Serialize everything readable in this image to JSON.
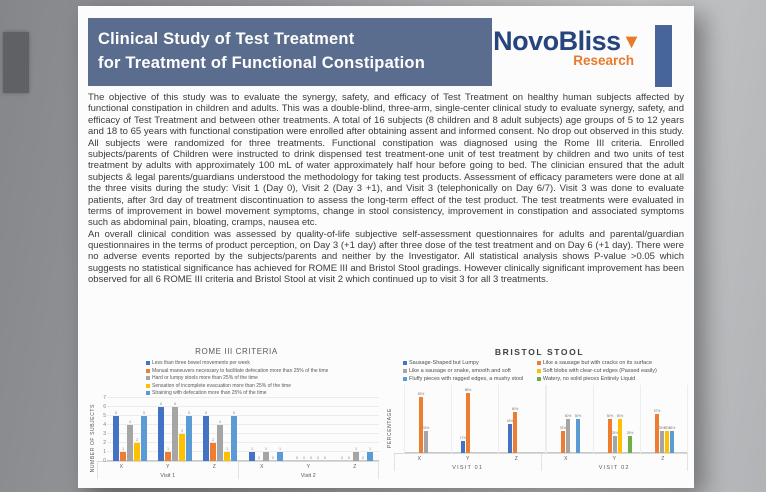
{
  "header": {
    "title_line1": "Clinical Study of Test Treatment",
    "title_line2": "for Treatment of Functional Constipation",
    "bar_color": "#5b6d8e",
    "text_color": "#ffffff"
  },
  "logo": {
    "name": "NovoBliss",
    "triangle_icon": "down-triangle",
    "triangle_glyph": "▼",
    "subtitle": "Research",
    "name_color": "#27457d",
    "accent_color": "#e87a2c",
    "side_bar_color": "#47659a"
  },
  "body": {
    "paragraph1": "The objective of this study was to evaluate the synergy, safety, and efficacy of Test Treatment on healthy human subjects affected by functional constipation in children and adults. This was a double-blind, three-arm, single-center clinical study to evaluate synergy, safety, and efficacy of Test Treatment and between other treatments. A total of 16 subjects (8 children and 8 adult subjects) age groups of 5 to 12 years and 18 to 65 years with functional constipation were enrolled after obtaining assent and informed consent. No drop out observed in this study. All subjects were randomized for three treatments. Functional constipation was diagnosed using the Rome III criteria. Enrolled subjects/parents of Children were instructed to drink dispensed test treatment-one unit of test treatment by children and two units of test treatment by adults with approximately 100 mL of water approximately half hour before going to bed. The clinician ensured that the adult subjects & legal parents/guardians understood the methodology for taking test products. Assessment of efficacy parameters were done at all the three visits during the study: Visit 1 (Day 0), Visit 2 (Day 3 +1), and Visit 3 (telephonically on Day 6/7). Visit 3 was done to evaluate patients, after 3rd day of treatment discontinuation to assess the long-term effect of the test product. The test treatments were evaluated in terms of improvement in bowel movement symptoms, change in stool consistency, improvement in constipation and associated symptoms such as abdominal pain, bloating, cramps, nausea etc.",
    "paragraph2": "An overall clinical condition was assessed by quality-of-life subjective self-assessment questionnaires for adults and parental/guardian questionnaires in the terms of product perception, on Day 3 (+1 day) after three dose of the test treatment and on Day 6 (+1 day). There were no adverse events reported by the subjects/parents and neither by the Investigator. All statistical analysis shows P-value >0.05 which suggests no statistical significance has achieved for ROME III and Bristol Stool gradings. However clinically significant improvement has been observed for all 6 ROME III criteria and Bristol Stool at visit 2 which continued up to visit 3 for all 3 treatments."
  },
  "chart_data": [
    {
      "type": "bar",
      "title": "ROME III CRITERIA",
      "ylabel": "NUMBER OF SUBJECTS",
      "xlabel": "",
      "ylim": [
        0,
        7
      ],
      "yticks": [
        0,
        1,
        2,
        3,
        4,
        5,
        6,
        7
      ],
      "grid": true,
      "legend_position": "top-left",
      "value_suffix": "",
      "show_zero_labels": true,
      "groups": [
        {
          "label": "Visit 1",
          "categories": [
            "X",
            "Y",
            "Z"
          ]
        },
        {
          "label": "Visit 2",
          "categories": [
            "X",
            "Y",
            "Z"
          ]
        }
      ],
      "series": [
        {
          "name": "Less than three bowel movements per week",
          "color": "#4472C4",
          "values": [
            5,
            6,
            5,
            1,
            0,
            0
          ]
        },
        {
          "name": "Manual maneuvers necessary to facilitate defecation more than 25% of the time",
          "color": "#ED7D31",
          "values": [
            1,
            1,
            2,
            0,
            0,
            0
          ]
        },
        {
          "name": "Hard or lumpy stools more than 25% of the time",
          "color": "#A5A5A5",
          "values": [
            4,
            6,
            4,
            1,
            0,
            1
          ]
        },
        {
          "name": "Sensation of incomplete evacuation more than 25% of the time",
          "color": "#FFC000",
          "values": [
            2,
            3,
            1,
            0,
            0,
            0
          ]
        },
        {
          "name": "Straining with defecation more than 25% of the time",
          "color": "#5B9BD5",
          "values": [
            5,
            5,
            5,
            1,
            0,
            1
          ]
        }
      ]
    },
    {
      "type": "bar",
      "title": "BRISTOL STOOL",
      "ylabel": "PERCENTAGE",
      "xlabel": "",
      "ylim": [
        0,
        100
      ],
      "grid": false,
      "legend_position": "top",
      "value_suffix": "%",
      "show_zero_labels": false,
      "groups": [
        {
          "label": "VISIT 01",
          "categories": [
            "X",
            "Y",
            "Z"
          ]
        },
        {
          "label": "VISIT 02",
          "categories": [
            "X",
            "Y",
            "Z"
          ]
        }
      ],
      "series": [
        {
          "name": "Sausage-Shaped but Lumpy",
          "color": "#4472C4",
          "values": [
            0,
            17,
            43,
            0,
            0,
            0
          ]
        },
        {
          "name": "Like a sausage but with cracks on its surface",
          "color": "#ED7D31",
          "values": [
            83,
            88,
            60,
            33,
            50,
            57
          ]
        },
        {
          "name": "Like a sausage or snake, smooth and soft",
          "color": "#A5A5A5",
          "values": [
            33,
            0,
            0,
            50,
            25,
            33
          ]
        },
        {
          "name": "Soft blobs with clear-cut edges (Passed easily)",
          "color": "#FFC000",
          "values": [
            0,
            0,
            0,
            0,
            50,
            33
          ]
        },
        {
          "name": "Fluffy pieces with ragged edges, a mushy stool",
          "color": "#5B9BD5",
          "values": [
            0,
            0,
            0,
            50,
            0,
            33
          ]
        },
        {
          "name": "Watery, no solid pieces Entirely Liquid",
          "color": "#70AD47",
          "values": [
            0,
            0,
            0,
            0,
            25,
            0
          ]
        }
      ]
    }
  ]
}
